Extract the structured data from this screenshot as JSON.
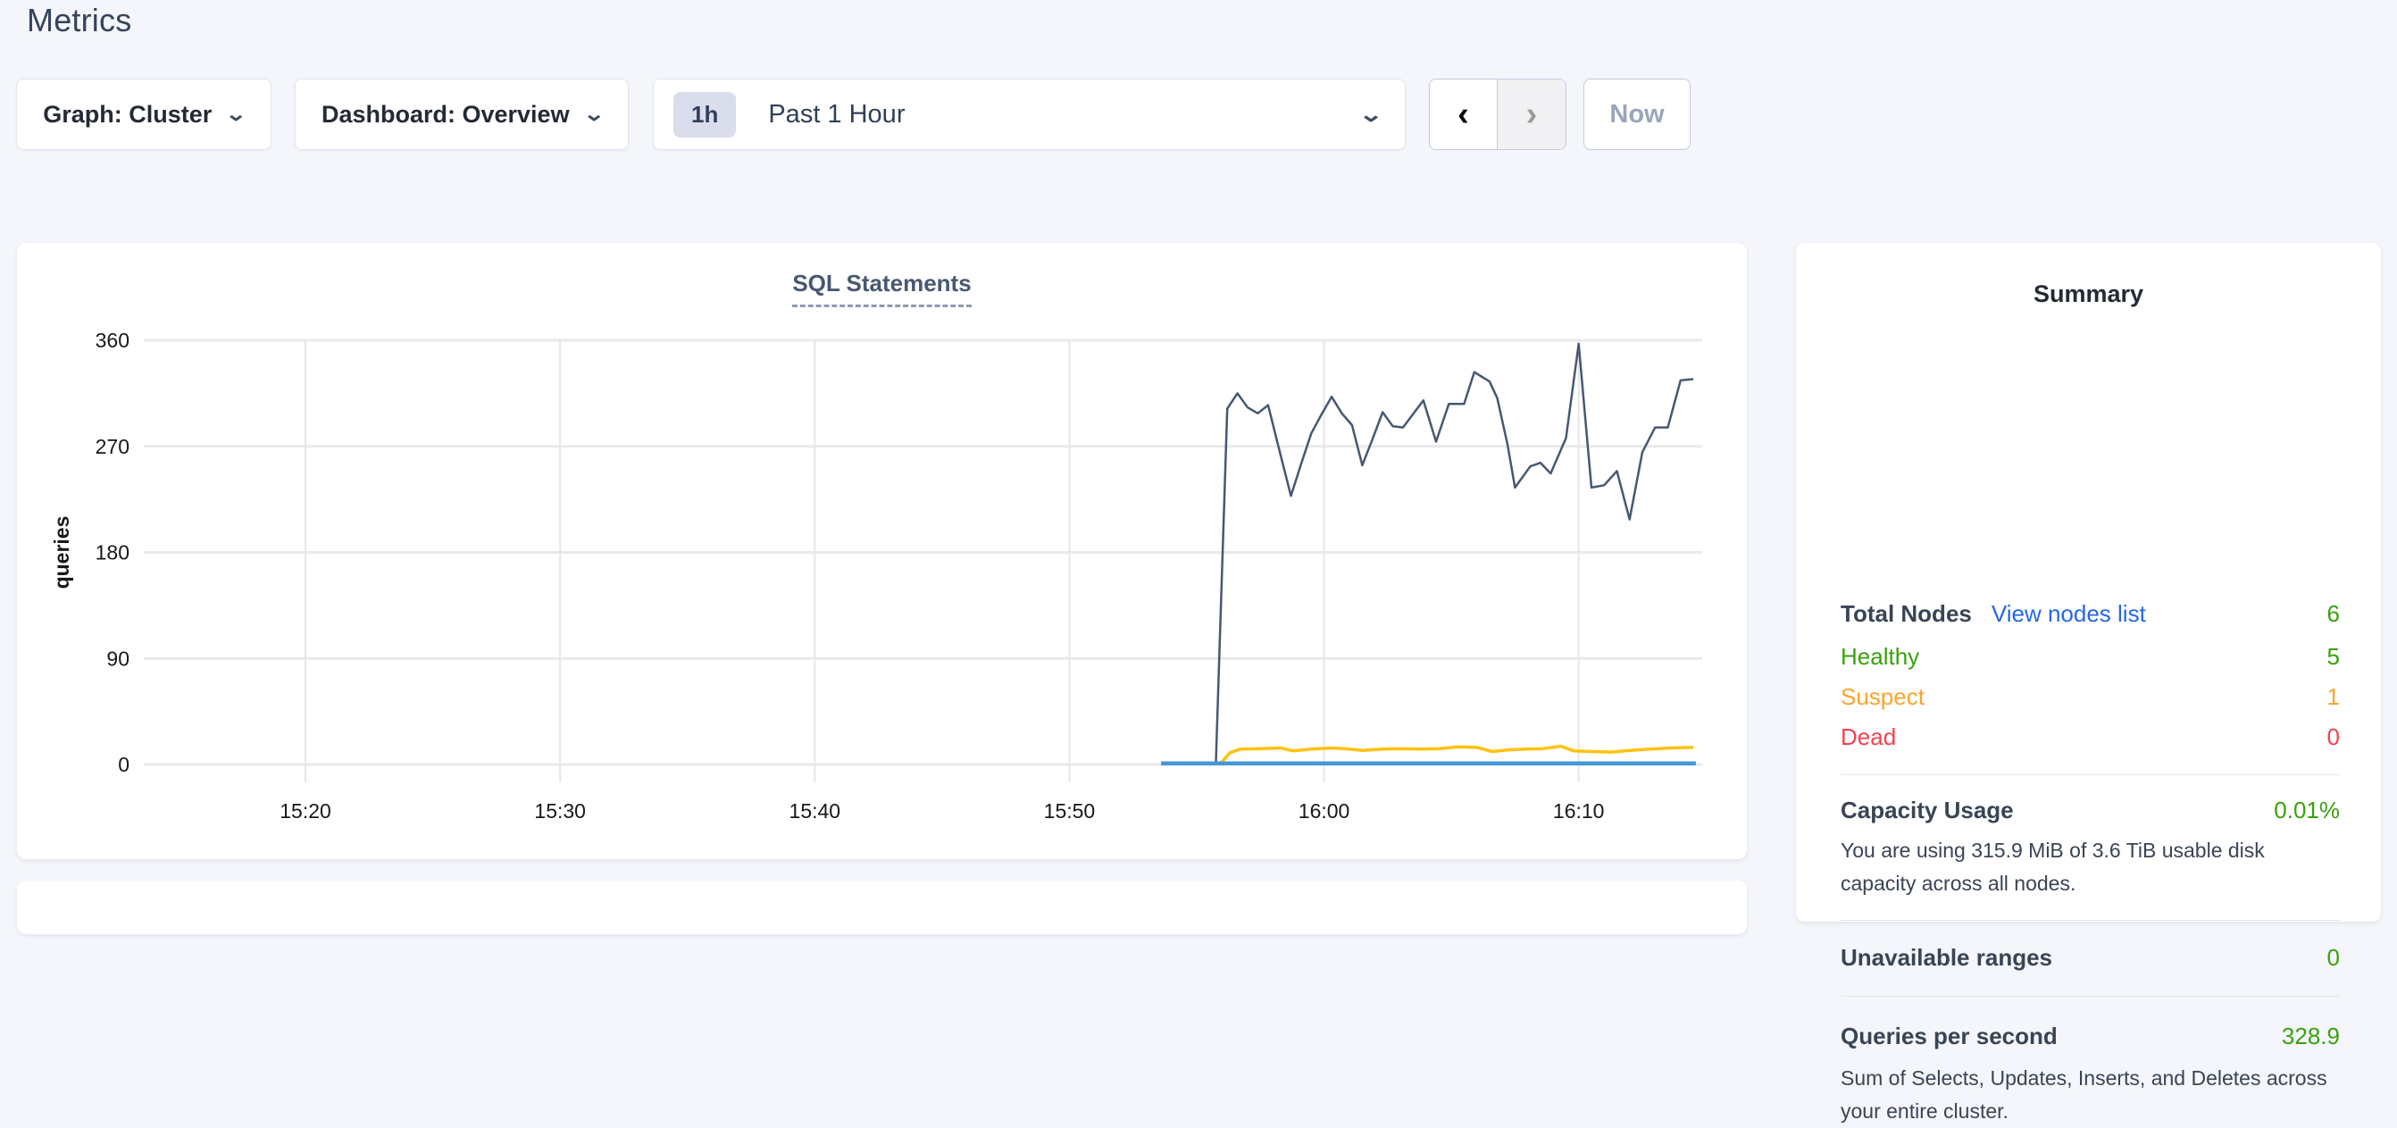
{
  "page": {
    "title": "Metrics"
  },
  "toolbar": {
    "graph_dropdown_label": "Graph: Cluster",
    "dashboard_dropdown_label": "Dashboard: Overview",
    "time_badge": "1h",
    "time_label": "Past 1 Hour",
    "now_label": "Now",
    "chevron_down": "⌄",
    "chevron_left": "‹",
    "chevron_right": "›"
  },
  "chart_data": {
    "type": "line",
    "title": "SQL Statements",
    "ylabel": "queries",
    "ylim": [
      0,
      360
    ],
    "y_ticks": [
      0,
      90,
      180,
      270,
      360
    ],
    "x_domain_minutes_after_1500": [
      13.65,
      74.85
    ],
    "x_ticks": [
      {
        "t": 20,
        "label": "15:20"
      },
      {
        "t": 30,
        "label": "15:30"
      },
      {
        "t": 40,
        "label": "15:40"
      },
      {
        "t": 50,
        "label": "15:50"
      },
      {
        "t": 60,
        "label": "16:00"
      },
      {
        "t": 70,
        "label": "16:10"
      }
    ],
    "grid": true,
    "legend_position": "none",
    "series": [
      {
        "name": "navy",
        "color": "#475872",
        "width": 2.5,
        "points": [
          [
            55.75,
            0
          ],
          [
            56.2,
            302
          ],
          [
            56.6,
            315
          ],
          [
            57.0,
            303
          ],
          [
            57.4,
            298
          ],
          [
            57.8,
            305
          ],
          [
            58.3,
            262
          ],
          [
            58.7,
            228
          ],
          [
            59.1,
            255
          ],
          [
            59.5,
            281
          ],
          [
            59.9,
            297
          ],
          [
            60.3,
            312
          ],
          [
            60.7,
            298
          ],
          [
            61.1,
            288
          ],
          [
            61.5,
            254
          ],
          [
            61.9,
            276
          ],
          [
            62.3,
            299
          ],
          [
            62.7,
            287
          ],
          [
            63.1,
            286
          ],
          [
            63.9,
            309
          ],
          [
            64.4,
            274
          ],
          [
            64.9,
            306
          ],
          [
            65.5,
            306
          ],
          [
            65.9,
            333
          ],
          [
            66.5,
            325
          ],
          [
            66.8,
            311
          ],
          [
            67.2,
            272
          ],
          [
            67.5,
            235
          ],
          [
            68.1,
            253
          ],
          [
            68.5,
            256
          ],
          [
            68.9,
            247
          ],
          [
            69.5,
            277
          ],
          [
            70.0,
            357
          ],
          [
            70.5,
            235
          ],
          [
            71.0,
            237
          ],
          [
            71.5,
            249
          ],
          [
            72.0,
            208
          ],
          [
            72.5,
            265
          ],
          [
            73.0,
            286
          ],
          [
            73.5,
            286
          ],
          [
            74.0,
            326
          ],
          [
            74.5,
            327
          ]
        ]
      },
      {
        "name": "yellow",
        "color": "#ffc20e",
        "width": 3.5,
        "points": [
          [
            55.9,
            0
          ],
          [
            56.3,
            10
          ],
          [
            56.7,
            13
          ],
          [
            57.5,
            13.5
          ],
          [
            58.3,
            14
          ],
          [
            58.8,
            11.5
          ],
          [
            59.5,
            13
          ],
          [
            60.3,
            14
          ],
          [
            60.8,
            13.5
          ],
          [
            61.5,
            12
          ],
          [
            62.3,
            13
          ],
          [
            63.0,
            13.5
          ],
          [
            63.8,
            13
          ],
          [
            64.5,
            13.5
          ],
          [
            65.3,
            15
          ],
          [
            66.0,
            14.5
          ],
          [
            66.6,
            11
          ],
          [
            67.3,
            12.5
          ],
          [
            67.9,
            13
          ],
          [
            68.6,
            13.5
          ],
          [
            69.3,
            15.5
          ],
          [
            69.8,
            11.5
          ],
          [
            70.5,
            11
          ],
          [
            71.3,
            10.5
          ],
          [
            72.0,
            12
          ],
          [
            72.8,
            13
          ],
          [
            73.6,
            14
          ],
          [
            74.5,
            14.5
          ]
        ]
      },
      {
        "name": "blue",
        "color": "#4696d9",
        "width": 4.5,
        "points": [
          [
            53.6,
            1
          ],
          [
            74.6,
            1
          ]
        ]
      }
    ]
  },
  "summary": {
    "title": "Summary",
    "total_nodes_label": "Total Nodes",
    "view_nodes_link": "View nodes list",
    "total_nodes_value": "6",
    "healthy_label": "Healthy",
    "healthy_value": "5",
    "suspect_label": "Suspect",
    "suspect_value": "1",
    "dead_label": "Dead",
    "dead_value": "0",
    "capacity_label": "Capacity Usage",
    "capacity_value": "0.01%",
    "capacity_desc": "You are using 315.9 MiB of 3.6 TiB usable disk capacity across all nodes.",
    "unavailable_label": "Unavailable ranges",
    "unavailable_value": "0",
    "qps_label": "Queries per second",
    "qps_value": "328.9",
    "qps_desc": "Sum of Selects, Updates, Inserts, and Deletes across your entire cluster."
  },
  "colors": {
    "green": "#3aa10c",
    "orange": "#faa42c",
    "red": "#f4414f",
    "link_blue": "#2467e6",
    "navy_line": "#475872",
    "yellow_line": "#ffc20e",
    "blue_line": "#4696d9"
  }
}
